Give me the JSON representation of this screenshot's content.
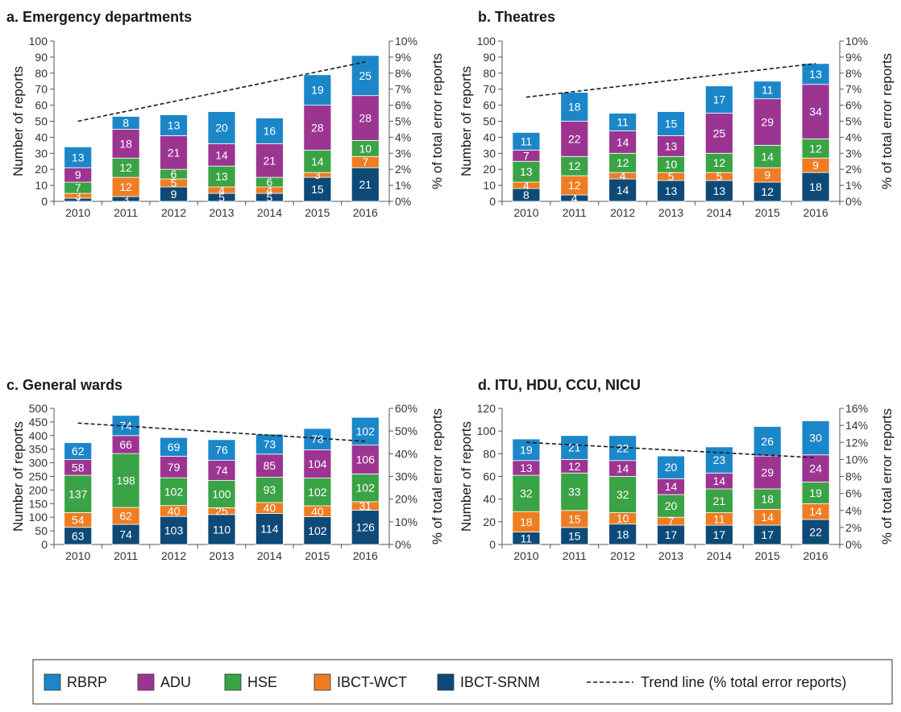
{
  "legend": [
    {
      "name": "RBRP",
      "color": "#1b87c9"
    },
    {
      "name": "ADU",
      "color": "#9c3591"
    },
    {
      "name": "HSE",
      "color": "#3aa346"
    },
    {
      "name": "IBCT-WCT",
      "color": "#ef7d22"
    },
    {
      "name": "IBCT-SRNM",
      "color": "#0d4a77"
    },
    {
      "name": "Trend line (% total error reports)",
      "style": "dashed"
    }
  ],
  "chart_data": [
    {
      "type": "bar",
      "stacked": true,
      "title": "a. Emergency departments",
      "categories": [
        "2010",
        "2011",
        "2012",
        "2013",
        "2014",
        "2015",
        "2016"
      ],
      "ylabel": "Number of reports",
      "y2label": "% of total error reports",
      "ylim": [
        0,
        100
      ],
      "yticks": [
        "0",
        "10",
        "20",
        "30",
        "40",
        "50",
        "60",
        "70",
        "80",
        "90",
        "100"
      ],
      "y2lim": [
        0,
        10
      ],
      "y2ticks": [
        "0%",
        "1%",
        "2%",
        "3%",
        "4%",
        "5%",
        "6%",
        "7%",
        "8%",
        "9%",
        "10%"
      ],
      "series": [
        {
          "name": "IBCT-SRNM",
          "values": [
            2,
            3,
            9,
            5,
            5,
            15,
            21
          ]
        },
        {
          "name": "IBCT-WCT",
          "values": [
            3,
            12,
            5,
            4,
            4,
            3,
            7
          ]
        },
        {
          "name": "HSE",
          "values": [
            7,
            12,
            6,
            13,
            6,
            14,
            10
          ]
        },
        {
          "name": "ADU",
          "values": [
            9,
            18,
            21,
            14,
            21,
            28,
            28
          ]
        },
        {
          "name": "RBRP",
          "values": [
            13,
            8,
            13,
            20,
            16,
            19,
            25
          ]
        }
      ],
      "trend": {
        "start": 5.0,
        "end": 8.7
      }
    },
    {
      "type": "bar",
      "stacked": true,
      "title": "b. Theatres",
      "categories": [
        "2010",
        "2011",
        "2012",
        "2013",
        "2014",
        "2015",
        "2016"
      ],
      "ylabel": "Number of reports",
      "y2label": "% of total error reports",
      "ylim": [
        0,
        100
      ],
      "yticks": [
        "0",
        "10",
        "20",
        "30",
        "40",
        "50",
        "60",
        "70",
        "80",
        "90",
        "100"
      ],
      "y2lim": [
        0,
        10
      ],
      "y2ticks": [
        "0%",
        "1%",
        "2%",
        "3%",
        "4%",
        "5%",
        "6%",
        "7%",
        "8%",
        "9%",
        "10%"
      ],
      "series": [
        {
          "name": "IBCT-SRNM",
          "values": [
            8,
            4,
            14,
            13,
            13,
            12,
            18
          ]
        },
        {
          "name": "IBCT-WCT",
          "values": [
            4,
            12,
            4,
            5,
            5,
            9,
            9
          ]
        },
        {
          "name": "HSE",
          "values": [
            13,
            12,
            12,
            10,
            12,
            14,
            12
          ]
        },
        {
          "name": "ADU",
          "values": [
            7,
            22,
            14,
            13,
            25,
            29,
            34
          ]
        },
        {
          "name": "RBRP",
          "values": [
            11,
            18,
            11,
            15,
            17,
            11,
            13
          ]
        }
      ],
      "trend": {
        "start": 6.5,
        "end": 8.6
      }
    },
    {
      "type": "bar",
      "stacked": true,
      "title": "c. General wards",
      "categories": [
        "2010",
        "2011",
        "2012",
        "2013",
        "2014",
        "2015",
        "2016"
      ],
      "ylabel": "Number of reports",
      "y2label": "% of total error reports",
      "ylim": [
        0,
        500
      ],
      "yticks": [
        "0",
        "50",
        "100",
        "150",
        "200",
        "250",
        "300",
        "350",
        "400",
        "450",
        "500"
      ],
      "y2lim": [
        0,
        60
      ],
      "y2ticks": [
        "0%",
        "10%",
        "20%",
        "30%",
        "40%",
        "50%",
        "60%"
      ],
      "series": [
        {
          "name": "IBCT-SRNM",
          "values": [
            63,
            74,
            103,
            110,
            114,
            102,
            126
          ]
        },
        {
          "name": "IBCT-WCT",
          "values": [
            54,
            62,
            40,
            25,
            40,
            40,
            31
          ]
        },
        {
          "name": "HSE",
          "values": [
            137,
            198,
            102,
            100,
            93,
            102,
            102
          ]
        },
        {
          "name": "ADU",
          "values": [
            58,
            66,
            79,
            74,
            85,
            104,
            106
          ]
        },
        {
          "name": "RBRP",
          "values": [
            62,
            74,
            69,
            76,
            73,
            78,
            102
          ]
        }
      ],
      "trend": {
        "start": 53.5,
        "end": 45.5
      }
    },
    {
      "type": "bar",
      "stacked": true,
      "title": "d. ITU, HDU, CCU, NICU",
      "categories": [
        "2010",
        "2011",
        "2012",
        "2013",
        "2014",
        "2015",
        "2016"
      ],
      "ylabel": "Number of reports",
      "y2label": "% of total error reports",
      "ylim": [
        0,
        120
      ],
      "yticks": [
        "0",
        "20",
        "40",
        "60",
        "80",
        "100",
        "120"
      ],
      "y2lim": [
        0,
        16
      ],
      "y2ticks": [
        "0%",
        "2%",
        "4%",
        "6%",
        "8%",
        "10%",
        "12%",
        "14%",
        "16%"
      ],
      "series": [
        {
          "name": "IBCT-SRNM",
          "values": [
            11,
            15,
            18,
            17,
            17,
            17,
            22
          ]
        },
        {
          "name": "IBCT-WCT",
          "values": [
            18,
            15,
            10,
            7,
            11,
            14,
            14
          ]
        },
        {
          "name": "HSE",
          "values": [
            32,
            33,
            32,
            20,
            21,
            18,
            19
          ]
        },
        {
          "name": "ADU",
          "values": [
            13,
            12,
            14,
            14,
            14,
            29,
            24
          ]
        },
        {
          "name": "RBRP",
          "values": [
            19,
            21,
            22,
            20,
            23,
            26,
            30
          ]
        }
      ],
      "trend": {
        "start": 12.0,
        "end": 10.2
      }
    }
  ]
}
